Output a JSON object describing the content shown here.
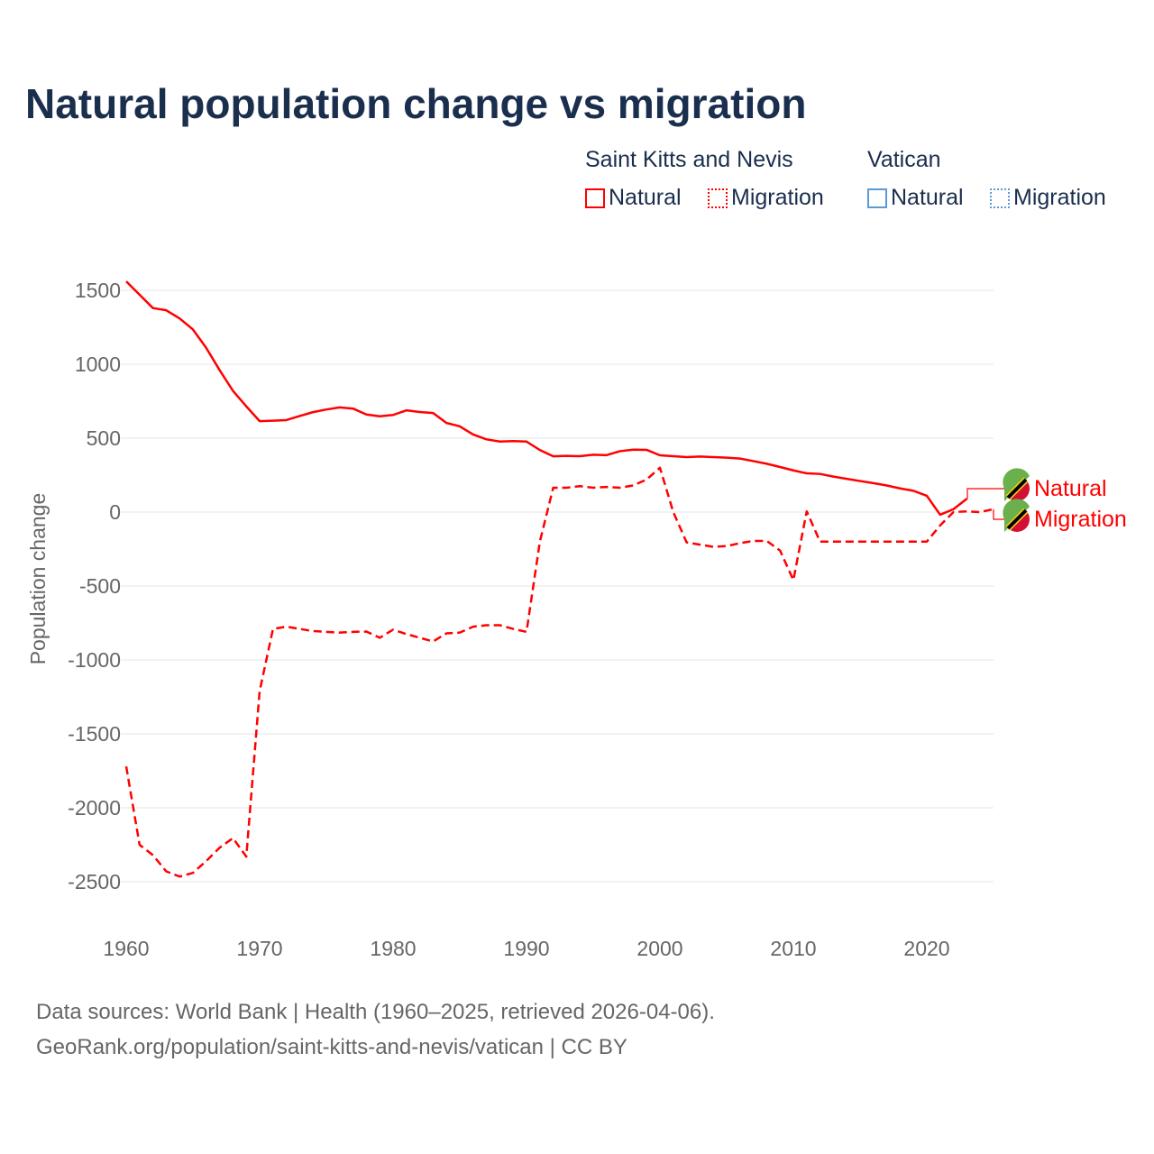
{
  "title": "Natural population change vs migration",
  "legend": {
    "groups": [
      {
        "name": "Saint Kitts and Nevis",
        "color": "#ff0000",
        "items": [
          "Natural",
          "Migration"
        ]
      },
      {
        "name": "Vatican",
        "color": "#5b9bd5",
        "items": [
          "Natural",
          "Migration"
        ]
      }
    ]
  },
  "footer": {
    "line1": "Data sources: World Bank | Health (1960–2025, retrieved 2026-04-06).",
    "line2": "GeoRank.org/population/saint-kitts-and-nevis/vatican | CC BY"
  },
  "chart_data": {
    "type": "line",
    "title": "Natural population change vs migration",
    "xlabel": "",
    "ylabel": "Population change",
    "xlim": [
      1960,
      2025
    ],
    "ylim": [
      -2750,
      1600
    ],
    "x_ticks": [
      "1960",
      "1970",
      "1980",
      "1990",
      "2000",
      "2010",
      "2020"
    ],
    "y_ticks": [
      "1500",
      "1000",
      "500",
      "0",
      "-500",
      "-1000",
      "-1500",
      "-2000",
      "-2500"
    ],
    "grid": true,
    "end_labels": [
      "Natural",
      "Migration"
    ],
    "series": [
      {
        "name": "Saint Kitts and Nevis – Natural",
        "style": "solid",
        "color": "#ff0000",
        "x_start": 1960,
        "values": [
          1560,
          1470,
          1380,
          1365,
          1310,
          1235,
          1110,
          960,
          820,
          715,
          615,
          618,
          622,
          650,
          676,
          694,
          708,
          700,
          660,
          648,
          657,
          688,
          677,
          670,
          603,
          580,
          525,
          492,
          477,
          480,
          477,
          420,
          377,
          380,
          378,
          388,
          385,
          412,
          422,
          421,
          384,
          378,
          372,
          376,
          372,
          368,
          362,
          345,
          327,
          305,
          282,
          262,
          258,
          240,
          225,
          210,
          196,
          180,
          160,
          144,
          110,
          -18,
          20,
          90
        ]
      },
      {
        "name": "Saint Kitts and Nevis – Migration",
        "style": "dashed",
        "color": "#ff0000",
        "x_start": 1960,
        "values": [
          -1720,
          -2250,
          -2320,
          -2430,
          -2465,
          -2440,
          -2360,
          -2270,
          -2205,
          -2330,
          -1210,
          -790,
          -775,
          -790,
          -805,
          -810,
          -815,
          -810,
          -808,
          -850,
          -795,
          -825,
          -850,
          -875,
          -820,
          -815,
          -775,
          -765,
          -765,
          -790,
          -810,
          -200,
          165,
          165,
          175,
          165,
          170,
          165,
          180,
          220,
          300,
          0,
          -205,
          -220,
          -235,
          -230,
          -210,
          -195,
          -195,
          -260,
          -460,
          5,
          -200,
          -200,
          -200,
          -200,
          -200,
          -200,
          -200,
          -200,
          -200,
          -90,
          0,
          5,
          0,
          20
        ]
      },
      {
        "name": "Vatican – Natural",
        "style": "solid",
        "color": "#5b9bd5",
        "values": []
      },
      {
        "name": "Vatican – Migration",
        "style": "dotted",
        "color": "#5b9bd5",
        "values": []
      }
    ]
  }
}
